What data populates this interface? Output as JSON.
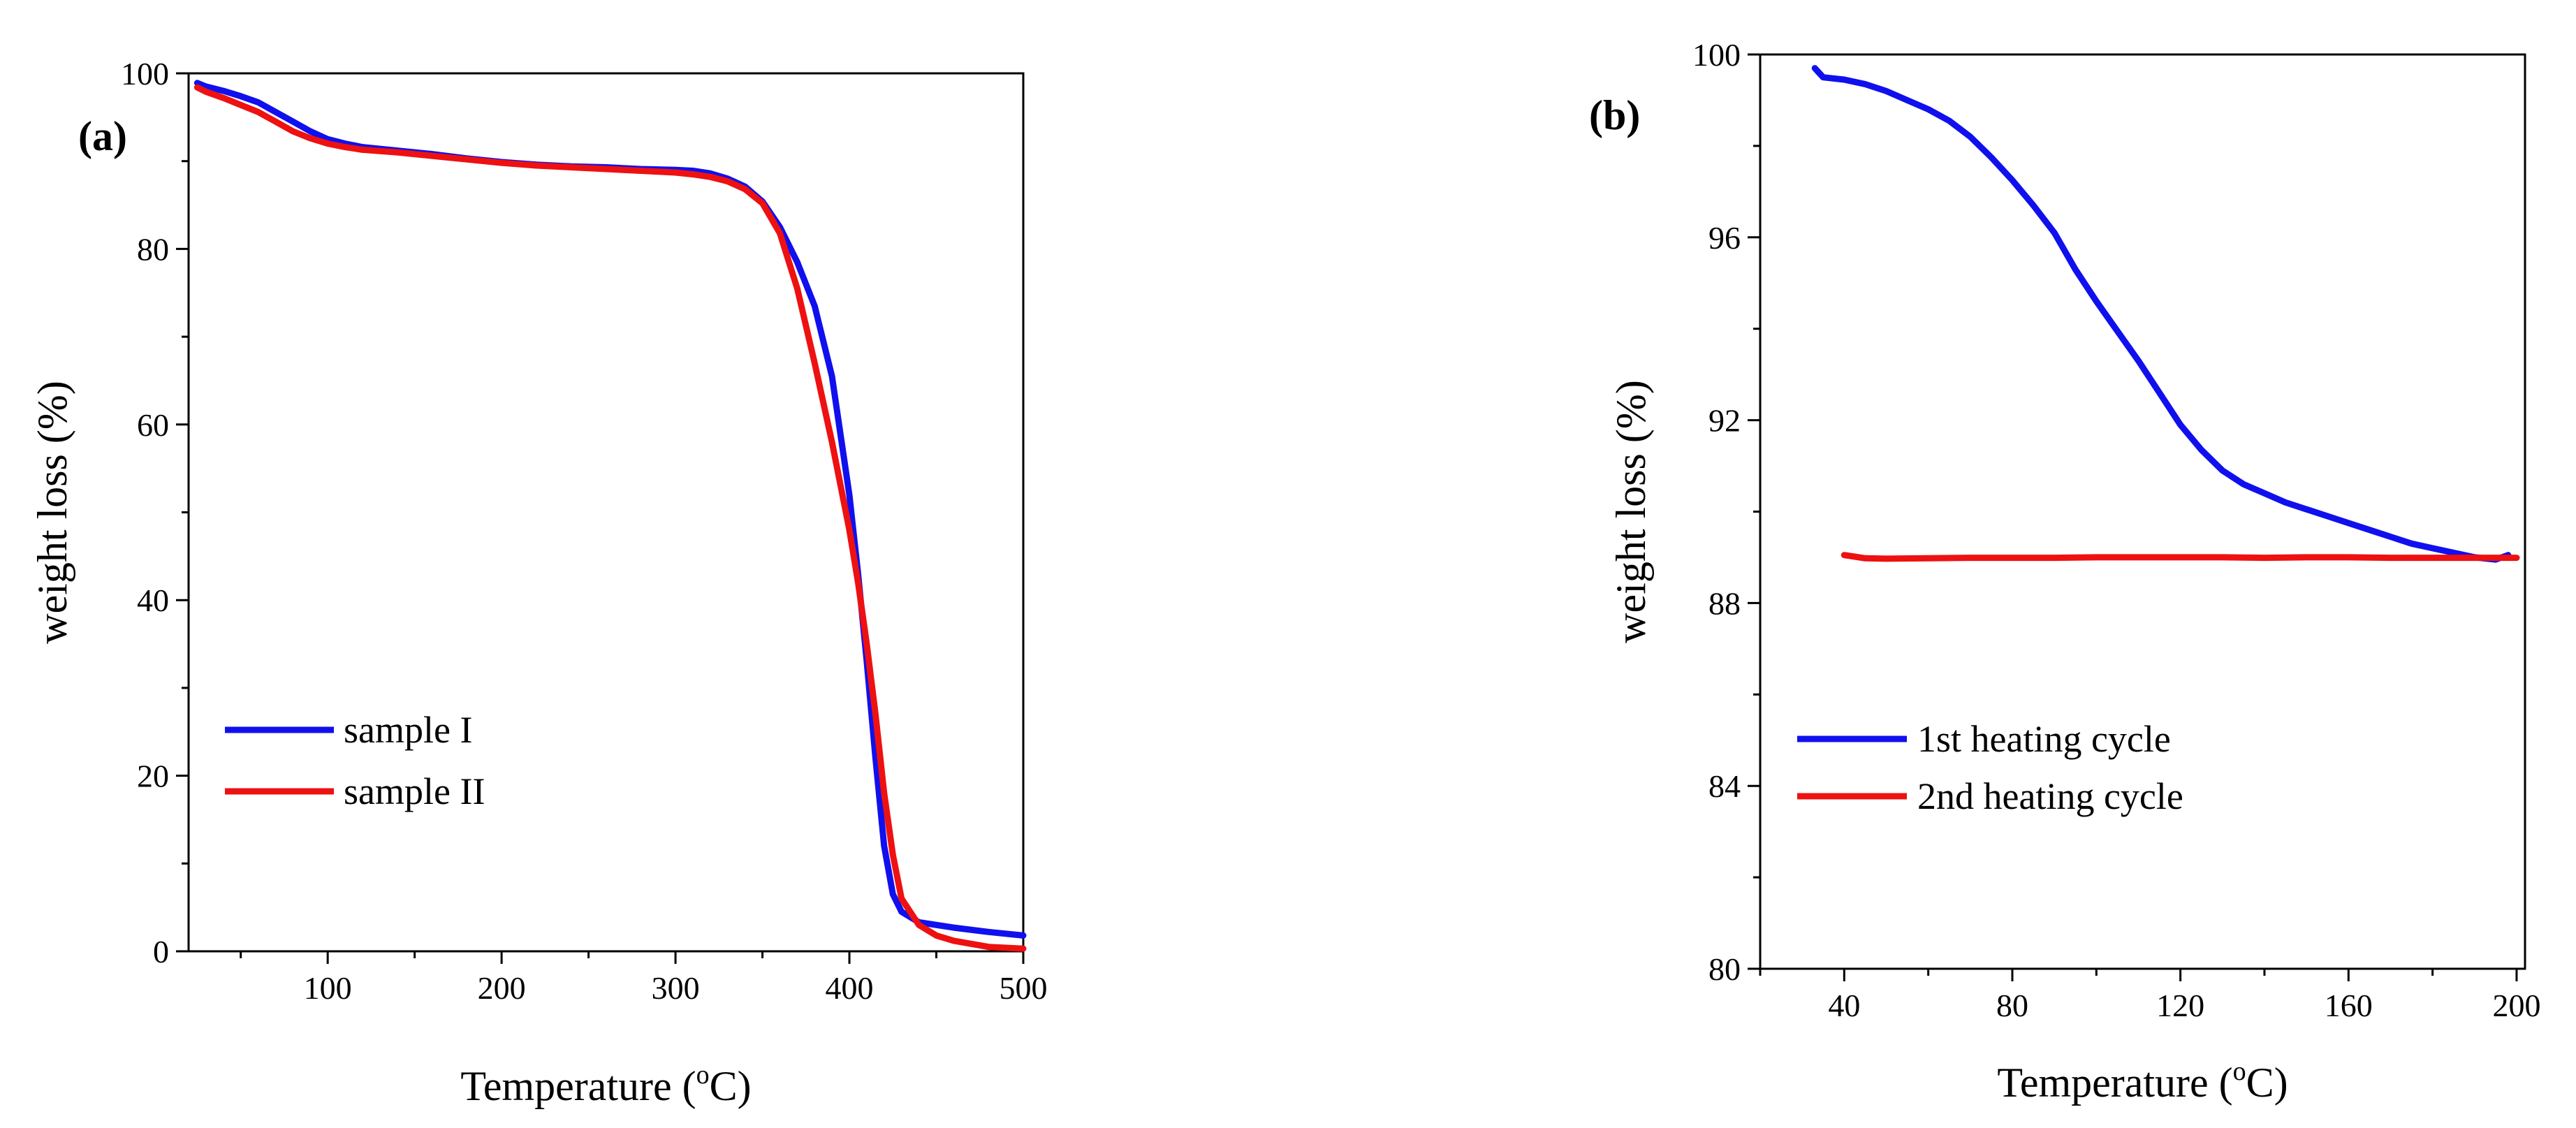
{
  "chart_data": [
    {
      "type": "line",
      "panel_label": "(a)",
      "xlabel_main": "Temperature (",
      "xlabel_sup": "o",
      "xlabel_end": "C)",
      "ylabel": "weight loss (%)",
      "xlim": [
        20,
        500
      ],
      "ylim": [
        0,
        100
      ],
      "xticks": [
        100,
        200,
        300,
        400,
        500
      ],
      "xtick_labels": [
        "100",
        "200",
        "300",
        "400",
        "500"
      ],
      "xminor": [
        50,
        150,
        250,
        350,
        450
      ],
      "yticks": [
        0,
        20,
        40,
        60,
        80,
        100
      ],
      "ytick_labels": [
        "0",
        "20",
        "40",
        "60",
        "80",
        "100"
      ],
      "yminor": [
        10,
        30,
        50,
        70,
        90
      ],
      "legend_position": "lower-left",
      "series": [
        {
          "name": "sample I",
          "color": "#1010ee",
          "points": [
            [
              25,
              98.9
            ],
            [
              30,
              98.5
            ],
            [
              40,
              98
            ],
            [
              50,
              97.4
            ],
            [
              60,
              96.7
            ],
            [
              70,
              95.6
            ],
            [
              80,
              94.5
            ],
            [
              90,
              93.4
            ],
            [
              100,
              92.5
            ],
            [
              110,
              92
            ],
            [
              120,
              91.6
            ],
            [
              140,
              91.2
            ],
            [
              160,
              90.8
            ],
            [
              180,
              90.3
            ],
            [
              200,
              89.9
            ],
            [
              220,
              89.6
            ],
            [
              240,
              89.4
            ],
            [
              260,
              89.3
            ],
            [
              280,
              89.1
            ],
            [
              300,
              89.0
            ],
            [
              310,
              88.9
            ],
            [
              320,
              88.6
            ],
            [
              330,
              88.0
            ],
            [
              340,
              87.1
            ],
            [
              350,
              85.4
            ],
            [
              360,
              82.5
            ],
            [
              370,
              78.5
            ],
            [
              380,
              73.5
            ],
            [
              390,
              65.5
            ],
            [
              400,
              52
            ],
            [
              405,
              43
            ],
            [
              410,
              33
            ],
            [
              415,
              22
            ],
            [
              420,
              12
            ],
            [
              425,
              6.5
            ],
            [
              430,
              4.5
            ],
            [
              440,
              3.3
            ],
            [
              460,
              2.7
            ],
            [
              480,
              2.2
            ],
            [
              500,
              1.8
            ]
          ]
        },
        {
          "name": "sample II",
          "color": "#ee1111",
          "points": [
            [
              25,
              98.4
            ],
            [
              30,
              97.9
            ],
            [
              40,
              97.2
            ],
            [
              50,
              96.4
            ],
            [
              60,
              95.6
            ],
            [
              70,
              94.5
            ],
            [
              80,
              93.4
            ],
            [
              90,
              92.6
            ],
            [
              100,
              92.0
            ],
            [
              110,
              91.6
            ],
            [
              120,
              91.3
            ],
            [
              140,
              91.0
            ],
            [
              160,
              90.6
            ],
            [
              180,
              90.2
            ],
            [
              200,
              89.8
            ],
            [
              220,
              89.5
            ],
            [
              240,
              89.3
            ],
            [
              260,
              89.1
            ],
            [
              280,
              88.9
            ],
            [
              300,
              88.7
            ],
            [
              310,
              88.5
            ],
            [
              320,
              88.2
            ],
            [
              330,
              87.7
            ],
            [
              340,
              86.8
            ],
            [
              350,
              85.2
            ],
            [
              360,
              81.8
            ],
            [
              370,
              75.5
            ],
            [
              380,
              67
            ],
            [
              390,
              58
            ],
            [
              400,
              48
            ],
            [
              405,
              42
            ],
            [
              410,
              35
            ],
            [
              415,
              27
            ],
            [
              420,
              18
            ],
            [
              425,
              11
            ],
            [
              430,
              6
            ],
            [
              440,
              3
            ],
            [
              450,
              1.8
            ],
            [
              460,
              1.2
            ],
            [
              480,
              0.5
            ],
            [
              500,
              0.3
            ]
          ]
        }
      ]
    },
    {
      "type": "line",
      "panel_label": "(b)",
      "xlabel_main": "Temperature (",
      "xlabel_sup": "o",
      "xlabel_end": "C)",
      "ylabel": "weight loss (%)",
      "xlim": [
        20,
        202
      ],
      "ylim": [
        80,
        100
      ],
      "xticks": [
        40,
        80,
        120,
        160,
        200
      ],
      "xtick_labels": [
        "40",
        "80",
        "120",
        "160",
        "200"
      ],
      "xminor": [
        20,
        60,
        100,
        140,
        180
      ],
      "yticks": [
        80,
        84,
        88,
        92,
        96,
        100
      ],
      "ytick_labels": [
        "80",
        "84",
        "88",
        "92",
        "96",
        "100"
      ],
      "yminor": [
        82,
        86,
        90,
        94,
        98
      ],
      "legend_position": "lower-left",
      "series": [
        {
          "name": "1st heating cycle",
          "color": "#1010ee",
          "points": [
            [
              33,
              99.7
            ],
            [
              35,
              99.5
            ],
            [
              40,
              99.45
            ],
            [
              45,
              99.35
            ],
            [
              50,
              99.2
            ],
            [
              55,
              99.0
            ],
            [
              60,
              98.8
            ],
            [
              65,
              98.55
            ],
            [
              70,
              98.2
            ],
            [
              75,
              97.75
            ],
            [
              80,
              97.25
            ],
            [
              85,
              96.7
            ],
            [
              90,
              96.1
            ],
            [
              95,
              95.3
            ],
            [
              100,
              94.6
            ],
            [
              105,
              93.95
            ],
            [
              110,
              93.3
            ],
            [
              115,
              92.6
            ],
            [
              120,
              91.9
            ],
            [
              125,
              91.35
            ],
            [
              130,
              90.9
            ],
            [
              135,
              90.6
            ],
            [
              140,
              90.4
            ],
            [
              145,
              90.2
            ],
            [
              150,
              90.05
            ],
            [
              155,
              89.9
            ],
            [
              160,
              89.75
            ],
            [
              165,
              89.6
            ],
            [
              170,
              89.45
            ],
            [
              175,
              89.3
            ],
            [
              180,
              89.2
            ],
            [
              185,
              89.1
            ],
            [
              190,
              89.0
            ],
            [
              195,
              88.95
            ],
            [
              198,
              89.05
            ]
          ]
        },
        {
          "name": "2nd heating cycle",
          "color": "#ee1111",
          "points": [
            [
              40,
              89.05
            ],
            [
              45,
              88.98
            ],
            [
              50,
              88.97
            ],
            [
              60,
              88.98
            ],
            [
              70,
              88.99
            ],
            [
              80,
              88.99
            ],
            [
              90,
              88.99
            ],
            [
              100,
              89.0
            ],
            [
              110,
              89.0
            ],
            [
              120,
              89.0
            ],
            [
              130,
              89.0
            ],
            [
              140,
              88.99
            ],
            [
              150,
              89.0
            ],
            [
              160,
              89.0
            ],
            [
              170,
              88.99
            ],
            [
              180,
              88.99
            ],
            [
              190,
              88.99
            ],
            [
              200,
              88.99
            ]
          ]
        }
      ]
    }
  ]
}
